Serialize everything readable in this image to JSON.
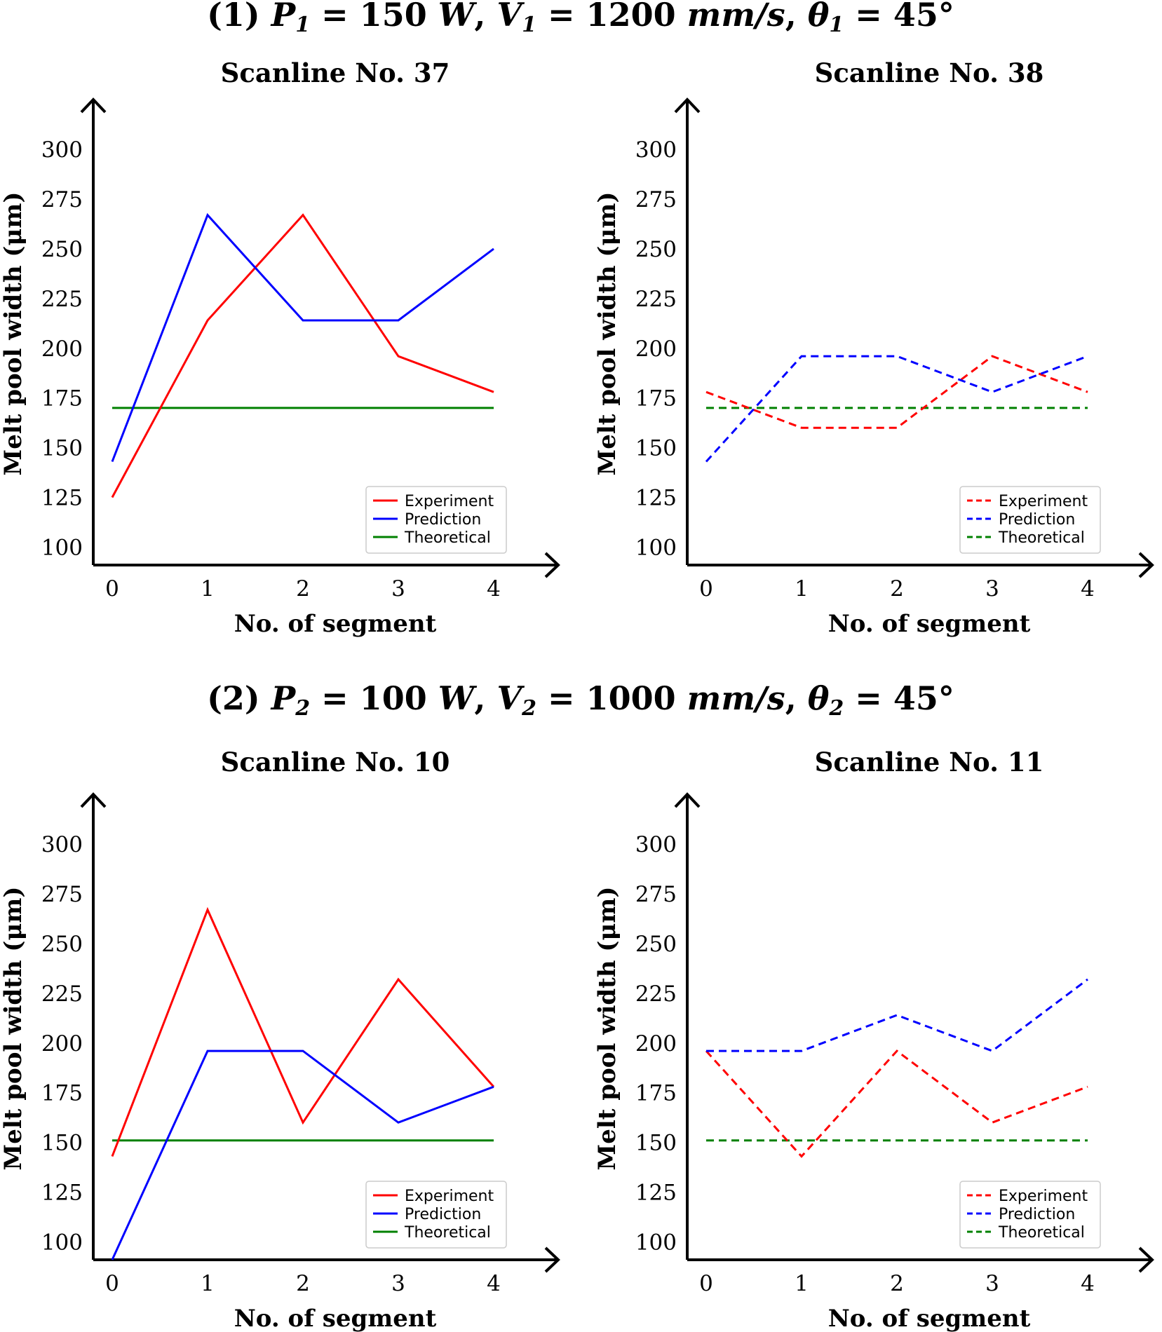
{
  "sections": [
    {
      "prefix": "(1) ",
      "p_var": "P",
      "p_sub": "1",
      "p_val": " = 150 ",
      "p_unit": "W",
      "v_var": "V",
      "v_sub": "1",
      "v_val": " = 1200 ",
      "v_unit": "mm/s",
      "t_var": "θ",
      "t_sub": "1",
      "t_val": " = 45°"
    },
    {
      "prefix": "(2) ",
      "p_var": "P",
      "p_sub": "2",
      "p_val": " = 100 ",
      "p_unit": "W",
      "v_var": "V",
      "v_sub": "2",
      "v_val": " = 1000 ",
      "v_unit": "mm/s",
      "t_var": "θ",
      "t_sub": "2",
      "t_val": " = 45°"
    }
  ],
  "chart_data": [
    {
      "type": "line",
      "title": "Scanline No. 37",
      "xlabel": "No. of segment",
      "ylabel": "Melt pool width (μm)",
      "x": [
        0,
        1,
        2,
        3,
        4
      ],
      "xticks": [
        0,
        1,
        2,
        3,
        4
      ],
      "yticks": [
        100,
        125,
        150,
        175,
        200,
        225,
        250,
        275,
        300
      ],
      "ylim": [
        91,
        321
      ],
      "line_style": "solid",
      "legend_position": "lower-right",
      "series": [
        {
          "name": "Experiment",
          "color": "#ff0000",
          "values": [
            125,
            214,
            267,
            196,
            178
          ]
        },
        {
          "name": "Prediction",
          "color": "#0000ff",
          "values": [
            143,
            267,
            214,
            214,
            250
          ]
        },
        {
          "name": "Theoretical",
          "color": "#008000",
          "values": [
            170,
            170,
            170,
            170,
            170
          ]
        }
      ]
    },
    {
      "type": "line",
      "title": "Scanline No. 38",
      "xlabel": "No. of segment",
      "ylabel": "Melt pool width (μm)",
      "x": [
        0,
        1,
        2,
        3,
        4
      ],
      "xticks": [
        0,
        1,
        2,
        3,
        4
      ],
      "yticks": [
        100,
        125,
        150,
        175,
        200,
        225,
        250,
        275,
        300
      ],
      "ylim": [
        91,
        321
      ],
      "line_style": "dashed",
      "legend_position": "lower-right",
      "series": [
        {
          "name": "Experiment",
          "color": "#ff0000",
          "values": [
            178,
            160,
            160,
            196,
            178
          ]
        },
        {
          "name": "Prediction",
          "color": "#0000ff",
          "values": [
            143,
            196,
            196,
            178,
            196
          ]
        },
        {
          "name": "Theoretical",
          "color": "#008000",
          "values": [
            170,
            170,
            170,
            170,
            170
          ]
        }
      ]
    },
    {
      "type": "line",
      "title": "Scanline No. 10",
      "xlabel": "No. of segment",
      "ylabel": "Melt pool width (μm)",
      "x": [
        0,
        1,
        2,
        3,
        4
      ],
      "xticks": [
        0,
        1,
        2,
        3,
        4
      ],
      "yticks": [
        100,
        125,
        150,
        175,
        200,
        225,
        250,
        275,
        300
      ],
      "ylim": [
        91,
        321
      ],
      "line_style": "solid",
      "legend_position": "lower-right",
      "series": [
        {
          "name": "Experiment",
          "color": "#ff0000",
          "values": [
            143,
            267,
            160,
            232,
            178
          ]
        },
        {
          "name": "Prediction",
          "color": "#0000ff",
          "values": [
            91,
            196,
            196,
            160,
            178
          ]
        },
        {
          "name": "Theoretical",
          "color": "#008000",
          "values": [
            151,
            151,
            151,
            151,
            151
          ]
        }
      ]
    },
    {
      "type": "line",
      "title": "Scanline No. 11",
      "xlabel": "No. of segment",
      "ylabel": "Melt pool width (μm)",
      "x": [
        0,
        1,
        2,
        3,
        4
      ],
      "xticks": [
        0,
        1,
        2,
        3,
        4
      ],
      "yticks": [
        100,
        125,
        150,
        175,
        200,
        225,
        250,
        275,
        300
      ],
      "ylim": [
        91,
        321
      ],
      "line_style": "dashed",
      "legend_position": "lower-right",
      "series": [
        {
          "name": "Experiment",
          "color": "#ff0000",
          "values": [
            196,
            143,
            196,
            160,
            178
          ]
        },
        {
          "name": "Prediction",
          "color": "#0000ff",
          "values": [
            196,
            196,
            214,
            196,
            232
          ]
        },
        {
          "name": "Theoretical",
          "color": "#008000",
          "values": [
            151,
            151,
            151,
            151,
            151
          ]
        }
      ]
    }
  ]
}
